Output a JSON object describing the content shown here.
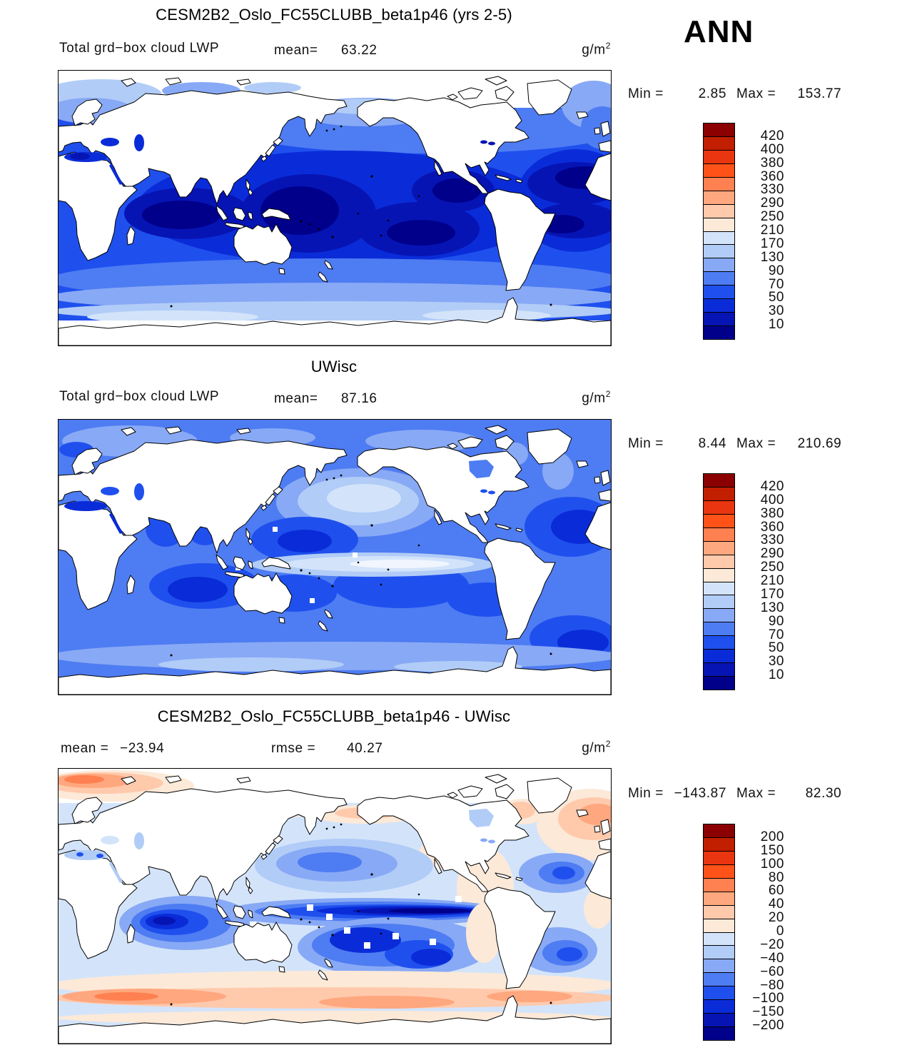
{
  "season": "ANN",
  "palette": {
    "colors": [
      "#8B0000",
      "#C21E00",
      "#E93510",
      "#FF5219",
      "#FF8050",
      "#FFA77E",
      "#FFC9AC",
      "#FCE9D8",
      "#D3E4FA",
      "#B1CCF7",
      "#88A9F5",
      "#4E7CF2",
      "#1F50EE",
      "#0A2CD8",
      "#0714B4",
      "#00008B"
    ]
  },
  "panels": [
    {
      "title": "CESM2B2_Oslo_FC55CLUBB_beta1p46 (yrs 2-5)",
      "var_label": "Total grd−box cloud LWP",
      "mean_label": "mean=",
      "mean": "63.22",
      "units_base": "g/m",
      "units_exp": "2",
      "min_label": "Min =",
      "min": "2.85",
      "max_label": "Max =",
      "max": "153.77",
      "colorbar_labels": [
        "420",
        "400",
        "380",
        "360",
        "330",
        "290",
        "250",
        "210",
        "170",
        "130",
        "90",
        "70",
        "50",
        "30",
        "10"
      ]
    },
    {
      "title": "UWisc",
      "var_label": "Total grd−box cloud LWP",
      "mean_label": "mean=",
      "mean": "87.16",
      "units_base": "g/m",
      "units_exp": "2",
      "min_label": "Min =",
      "min": "8.44",
      "max_label": "Max =",
      "max": "210.69",
      "colorbar_labels": [
        "420",
        "400",
        "380",
        "360",
        "330",
        "290",
        "250",
        "210",
        "170",
        "130",
        "90",
        "70",
        "50",
        "30",
        "10"
      ]
    },
    {
      "title": "CESM2B2_Oslo_FC55CLUBB_beta1p46 - UWisc",
      "mean_label": "mean =",
      "mean": "−23.94",
      "rmse_label": "rmse =",
      "rmse": "40.27",
      "units_base": "g/m",
      "units_exp": "2",
      "min_label": "Min =",
      "min": "−143.87",
      "max_label": "Max =",
      "max": "82.30",
      "colorbar_labels": [
        "200",
        "150",
        "100",
        "80",
        "60",
        "40",
        "20",
        "0",
        "−20",
        "−40",
        "−60",
        "−80",
        "−100",
        "−150",
        "−200"
      ]
    }
  ],
  "chart_data": [
    {
      "type": "heatmap",
      "title": "CESM2B2_Oslo_FC55CLUBB_beta1p46 (yrs 2-5)",
      "variable": "Total grd-box cloud LWP",
      "units": "g/m2",
      "season": "ANN",
      "projection": "global lat-lon, Pacific-centered, land masked white",
      "stats": {
        "mean": 63.22,
        "min": 2.85,
        "max": 153.77
      },
      "contour_levels": [
        10,
        30,
        50,
        70,
        90,
        130,
        170,
        210,
        250,
        290,
        330,
        360,
        380,
        400,
        420
      ],
      "legend_position": "right",
      "description": "Ocean LWP 10-90 g/m2 (dark blues) in tropics/subtropics, 90-210 (light blues) at high latitudes and Southern Ocean"
    },
    {
      "type": "heatmap",
      "title": "UWisc",
      "variable": "Total grd-box cloud LWP",
      "units": "g/m2",
      "season": "ANN",
      "projection": "global lat-lon, Pacific-centered, land masked white",
      "stats": {
        "mean": 87.16,
        "min": 8.44,
        "max": 210.69
      },
      "contour_levels": [
        10,
        30,
        50,
        70,
        90,
        130,
        170,
        210,
        250,
        290,
        330,
        360,
        380,
        400,
        420
      ],
      "legend_position": "right",
      "description": "Higher LWP overall; very light band (170-210) along equatorial Pacific and North Pacific"
    },
    {
      "type": "heatmap",
      "title": "CESM2B2_Oslo_FC55CLUBB_beta1p46 - UWisc",
      "variable": "Total grd-box cloud LWP difference",
      "units": "g/m2",
      "season": "ANN",
      "projection": "global lat-lon, Pacific-centered, land masked white",
      "stats": {
        "mean": -23.94,
        "rmse": 40.27,
        "min": -143.87,
        "max": 82.3
      },
      "contour_levels": [
        -200,
        -150,
        -100,
        -80,
        -60,
        -40,
        -20,
        0,
        20,
        40,
        60,
        80,
        100,
        150,
        200
      ],
      "legend_position": "right",
      "description": "Strong negative (blue, to -150) band along equatorial Pacific and Indian Ocean; positive (orange, +20 to +60) bands over Southern Ocean ~55S and Arctic/North Atlantic"
    }
  ]
}
